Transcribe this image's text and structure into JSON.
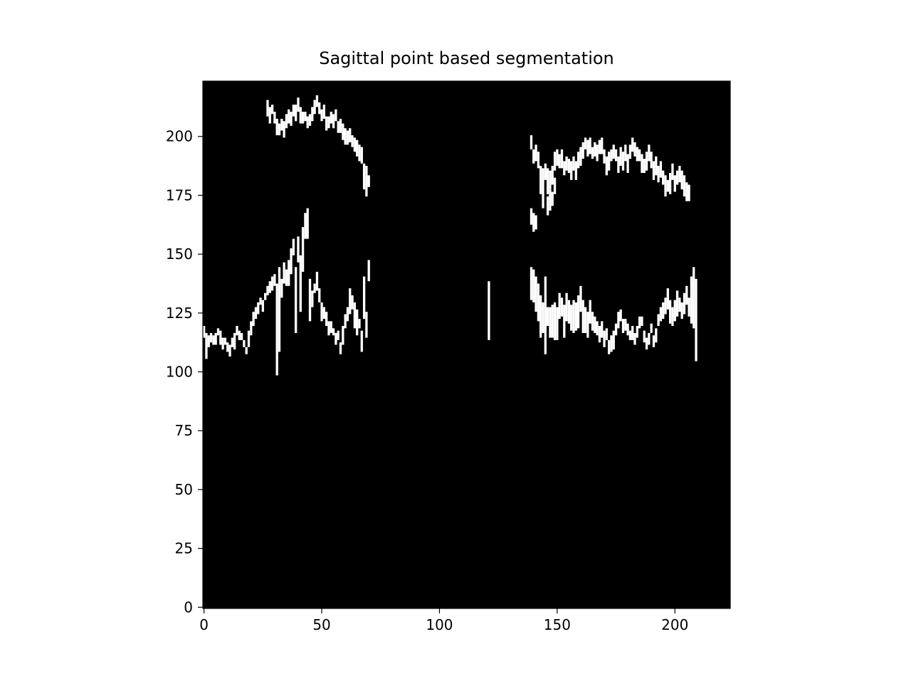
{
  "chart_data": {
    "type": "heatmap",
    "title": "Sagittal point based segmentation",
    "xlabel": "",
    "ylabel": "",
    "colormap": "gray",
    "background_color": "#000000",
    "foreground_color": "#ffffff",
    "image_shape": [
      224,
      224
    ],
    "xlim": [
      -0.5,
      223.5
    ],
    "ylim": [
      223.5,
      -0.5
    ],
    "x_ticks": [
      0,
      50,
      100,
      150,
      200
    ],
    "y_ticks": [
      0,
      25,
      50,
      75,
      100,
      125,
      150,
      175,
      200
    ],
    "grid": false,
    "legend": "none",
    "segments": [
      [
        0,
        120,
        124
      ],
      [
        1,
        117,
        127
      ],
      [
        2,
        116,
        120
      ],
      [
        3,
        117,
        120
      ],
      [
        4,
        116,
        119
      ],
      [
        5,
        117,
        121
      ],
      [
        6,
        119,
        121
      ],
      [
        7,
        118,
        123
      ],
      [
        8,
        115,
        119
      ],
      [
        9,
        115,
        117
      ],
      [
        10,
        113,
        116
      ],
      [
        11,
        112,
        116
      ],
      [
        12,
        115,
        118
      ],
      [
        13,
        117,
        123
      ],
      [
        14,
        120,
        123
      ],
      [
        15,
        118,
        121
      ],
      [
        16,
        117,
        119
      ],
      [
        17,
        114,
        116
      ],
      [
        18,
        111,
        113
      ],
      [
        19,
        118,
        124
      ],
      [
        20,
        122,
        127
      ],
      [
        21,
        126,
        131
      ],
      [
        22,
        128,
        132
      ],
      [
        23,
        130,
        134
      ],
      [
        24,
        132,
        134
      ],
      [
        25,
        131,
        135
      ],
      [
        26,
        134,
        136
      ],
      [
        27,
        137,
        140
      ],
      [
        28,
        139,
        143
      ],
      [
        29,
        141,
        146
      ],
      [
        30,
        142,
        146
      ],
      [
        31,
        138,
        176
      ],
      [
        32,
        145,
        180
      ],
      [
        33,
        140,
        147
      ],
      [
        34,
        147,
        155
      ],
      [
        35,
        144,
        150
      ],
      [
        36,
        148,
        158
      ],
      [
        37,
        153,
        163
      ],
      [
        38,
        157,
        163
      ],
      [
        39,
        145,
        172
      ],
      [
        40,
        158,
        168
      ],
      [
        41,
        150,
        173
      ],
      [
        42,
        162,
        180
      ],
      [
        43,
        168,
        178
      ],
      [
        44,
        170,
        182
      ],
      [
        45,
        140,
        157
      ],
      [
        46,
        135,
        141
      ],
      [
        47,
        138,
        141
      ],
      [
        48,
        143,
        150
      ],
      [
        49,
        136,
        141
      ],
      [
        50,
        130,
        137
      ],
      [
        51,
        128,
        132
      ],
      [
        52,
        126,
        131
      ],
      [
        53,
        122,
        127
      ],
      [
        54,
        122,
        126
      ],
      [
        55,
        119,
        121
      ],
      [
        56,
        117,
        121
      ],
      [
        57,
        118,
        121
      ],
      [
        58,
        113,
        117
      ],
      [
        59,
        120,
        127
      ],
      [
        60,
        125,
        130
      ],
      [
        61,
        128,
        133
      ],
      [
        62,
        136,
        146
      ],
      [
        63,
        133,
        138
      ],
      [
        64,
        130,
        140
      ],
      [
        65,
        127,
        137
      ],
      [
        66,
        123,
        126
      ],
      [
        67,
        118,
        126
      ],
      [
        68,
        141,
        158
      ],
      [
        69,
        126,
        136
      ],
      [
        70,
        148,
        156
      ],
      [
        121,
        139,
        163
      ],
      [
        139,
        145,
        158
      ],
      [
        140,
        144,
        157
      ],
      [
        141,
        141,
        155
      ],
      [
        142,
        138,
        153
      ],
      [
        143,
        133,
        150
      ],
      [
        144,
        130,
        142
      ],
      [
        145,
        141,
        173
      ],
      [
        146,
        128,
        135
      ],
      [
        147,
        128,
        140
      ],
      [
        148,
        129,
        142
      ],
      [
        149,
        130,
        145
      ],
      [
        150,
        128,
        141
      ],
      [
        151,
        134,
        144
      ],
      [
        152,
        132,
        139
      ],
      [
        153,
        129,
        142
      ],
      [
        154,
        134,
        145
      ],
      [
        155,
        131,
        140
      ],
      [
        156,
        129,
        139
      ],
      [
        157,
        131,
        144
      ],
      [
        158,
        130,
        141
      ],
      [
        159,
        133,
        146
      ],
      [
        160,
        137,
        147
      ],
      [
        161,
        131,
        144
      ],
      [
        162,
        128,
        138
      ],
      [
        163,
        126,
        136
      ],
      [
        164,
        131,
        140
      ],
      [
        165,
        126,
        133
      ],
      [
        166,
        124,
        130
      ],
      [
        167,
        122,
        127
      ],
      [
        168,
        120,
        126
      ],
      [
        169,
        122,
        128
      ],
      [
        170,
        118,
        124
      ],
      [
        171,
        119,
        123
      ],
      [
        172,
        114,
        119
      ],
      [
        173,
        116,
        122
      ],
      [
        174,
        118,
        125
      ],
      [
        175,
        121,
        125
      ],
      [
        176,
        126,
        132
      ],
      [
        177,
        127,
        131
      ],
      [
        178,
        123,
        128
      ],
      [
        179,
        123,
        127
      ],
      [
        180,
        121,
        125
      ],
      [
        181,
        118,
        121
      ],
      [
        182,
        120,
        125
      ],
      [
        183,
        117,
        121
      ],
      [
        184,
        120,
        124
      ],
      [
        185,
        124,
        128
      ],
      [
        186,
        124,
        127
      ],
      [
        187,
        118,
        122
      ],
      [
        188,
        115,
        119
      ],
      [
        189,
        117,
        121
      ],
      [
        190,
        121,
        124
      ],
      [
        191,
        116,
        120
      ],
      [
        192,
        119,
        124
      ],
      [
        193,
        125,
        129
      ],
      [
        194,
        128,
        133
      ],
      [
        195,
        130,
        136
      ],
      [
        196,
        132,
        138
      ],
      [
        197,
        136,
        144
      ],
      [
        198,
        131,
        140
      ],
      [
        199,
        128,
        135
      ],
      [
        200,
        131,
        139
      ],
      [
        201,
        135,
        145
      ],
      [
        202,
        132,
        137
      ],
      [
        203,
        130,
        136
      ],
      [
        204,
        134,
        142
      ],
      [
        205,
        137,
        144
      ],
      [
        206,
        132,
        139
      ],
      [
        207,
        141,
        160
      ],
      [
        208,
        145,
        170
      ],
      [
        209,
        140,
        174
      ],
      [
        139,
        170,
        176
      ],
      [
        140,
        168,
        175
      ],
      [
        141,
        167,
        172
      ],
      [
        144,
        177,
        183
      ],
      [
        146,
        175,
        182
      ],
      [
        147,
        178,
        186
      ],
      [
        148,
        177,
        182
      ],
      [
        149,
        183,
        189
      ],
      [
        27,
        216,
        222
      ],
      [
        28,
        213,
        219
      ],
      [
        29,
        214,
        217
      ],
      [
        30,
        211,
        215
      ],
      [
        31,
        208,
        214
      ],
      [
        32,
        206,
        210
      ],
      [
        33,
        208,
        212
      ],
      [
        34,
        207,
        213
      ],
      [
        35,
        210,
        215
      ],
      [
        36,
        212,
        217
      ],
      [
        37,
        211,
        216
      ],
      [
        38,
        214,
        218
      ],
      [
        39,
        214,
        220
      ],
      [
        40,
        217,
        222
      ],
      [
        41,
        213,
        219
      ],
      [
        42,
        211,
        215
      ],
      [
        43,
        211,
        214
      ],
      [
        44,
        209,
        213
      ],
      [
        45,
        210,
        214
      ],
      [
        46,
        213,
        218
      ],
      [
        47,
        216,
        221
      ],
      [
        48,
        218,
        222
      ],
      [
        49,
        215,
        219
      ],
      [
        50,
        212,
        216
      ],
      [
        51,
        214,
        219
      ],
      [
        52,
        209,
        214
      ],
      [
        53,
        209,
        213
      ],
      [
        54,
        211,
        215
      ],
      [
        55,
        210,
        215
      ],
      [
        56,
        212,
        216
      ],
      [
        57,
        207,
        211
      ],
      [
        58,
        208,
        213
      ],
      [
        59,
        206,
        212
      ],
      [
        60,
        204,
        210
      ],
      [
        61,
        203,
        208
      ],
      [
        62,
        204,
        209
      ],
      [
        63,
        201,
        205
      ],
      [
        64,
        200,
        205
      ],
      [
        65,
        199,
        205
      ],
      [
        66,
        197,
        203
      ],
      [
        67,
        196,
        202
      ],
      [
        68,
        189,
        199
      ],
      [
        69,
        188,
        200
      ],
      [
        70,
        184,
        188
      ],
      [
        139,
        201,
        206
      ],
      [
        140,
        195,
        200
      ],
      [
        141,
        197,
        203
      ],
      [
        142,
        194,
        200
      ],
      [
        143,
        188,
        199
      ],
      [
        144,
        187,
        196
      ],
      [
        145,
        189,
        195
      ],
      [
        146,
        187,
        197
      ],
      [
        147,
        186,
        193
      ],
      [
        148,
        188,
        195
      ],
      [
        149,
        194,
        201
      ],
      [
        150,
        195,
        201
      ],
      [
        151,
        193,
        198
      ],
      [
        152,
        195,
        202
      ],
      [
        153,
        190,
        195
      ],
      [
        154,
        192,
        197
      ],
      [
        155,
        191,
        196
      ],
      [
        156,
        190,
        197
      ],
      [
        157,
        192,
        197
      ],
      [
        158,
        190,
        197
      ],
      [
        159,
        194,
        200
      ],
      [
        160,
        196,
        203
      ],
      [
        161,
        198,
        204
      ],
      [
        162,
        200,
        204
      ],
      [
        163,
        199,
        205
      ],
      [
        164,
        200,
        206
      ],
      [
        165,
        196,
        200
      ],
      [
        166,
        198,
        203
      ],
      [
        167,
        197,
        203
      ],
      [
        168,
        199,
        204
      ],
      [
        169,
        200,
        206
      ],
      [
        170,
        195,
        200
      ],
      [
        171,
        192,
        199
      ],
      [
        172,
        194,
        201
      ],
      [
        173,
        195,
        199
      ],
      [
        174,
        197,
        202
      ],
      [
        175,
        195,
        199
      ],
      [
        176,
        192,
        198
      ],
      [
        177,
        196,
        203
      ],
      [
        178,
        194,
        201
      ],
      [
        179,
        197,
        203
      ],
      [
        180,
        193,
        200
      ],
      [
        181,
        197,
        202
      ],
      [
        182,
        200,
        205
      ],
      [
        183,
        198,
        203
      ],
      [
        184,
        196,
        201
      ],
      [
        185,
        195,
        199
      ],
      [
        186,
        193,
        200
      ],
      [
        187,
        191,
        196
      ],
      [
        188,
        194,
        201
      ],
      [
        189,
        197,
        203
      ],
      [
        190,
        194,
        200
      ],
      [
        191,
        190,
        197
      ],
      [
        192,
        192,
        199
      ],
      [
        193,
        188,
        194
      ],
      [
        194,
        190,
        196
      ],
      [
        195,
        186,
        191
      ],
      [
        196,
        184,
        192
      ],
      [
        197,
        182,
        186
      ],
      [
        198,
        185,
        193
      ],
      [
        199,
        189,
        195
      ],
      [
        200,
        184,
        190
      ],
      [
        201,
        186,
        191
      ],
      [
        202,
        188,
        194
      ],
      [
        203,
        186,
        193
      ],
      [
        204,
        184,
        192
      ],
      [
        205,
        181,
        188
      ],
      [
        206,
        180,
        186
      ]
    ]
  }
}
